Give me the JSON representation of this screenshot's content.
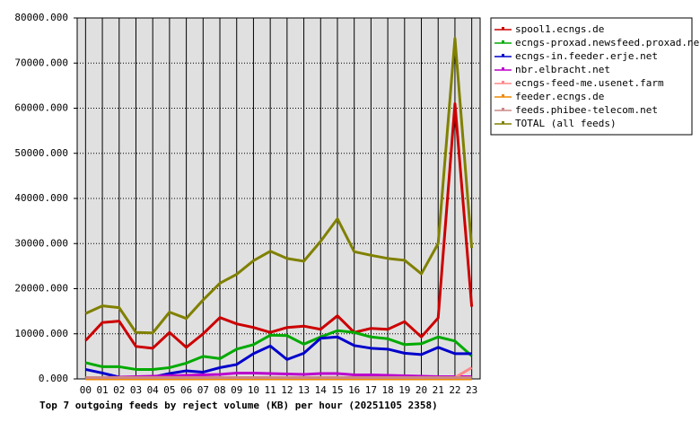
{
  "chart_data": {
    "type": "line",
    "title": "Top 7 outgoing feeds by reject volume (KB) per hour (20251105 2358)",
    "categories": [
      "00",
      "01",
      "02",
      "03",
      "04",
      "05",
      "06",
      "07",
      "08",
      "09",
      "10",
      "11",
      "12",
      "13",
      "14",
      "15",
      "16",
      "17",
      "18",
      "19",
      "20",
      "21",
      "22",
      "23"
    ],
    "ylim": [
      0,
      80000
    ],
    "yticks": [
      {
        "value": 0,
        "label": "0.000"
      },
      {
        "value": 10000,
        "label": "10000.000"
      },
      {
        "value": 20000,
        "label": "20000.000"
      },
      {
        "value": 30000,
        "label": "30000.000"
      },
      {
        "value": 40000,
        "label": "40000.000"
      },
      {
        "value": 50000,
        "label": "50000.000"
      },
      {
        "value": 60000,
        "label": "60000.000"
      },
      {
        "value": 70000,
        "label": "70000.000"
      },
      {
        "value": 80000,
        "label": "80000.000"
      }
    ],
    "grid": true,
    "series": [
      {
        "name": "spool1.ecngs.de",
        "color": "#cc0000",
        "values": [
          8500,
          12500,
          12800,
          7200,
          6800,
          10300,
          7000,
          10000,
          13600,
          12200,
          11400,
          10300,
          11400,
          11700,
          11000,
          14000,
          10300,
          11200,
          11000,
          12700,
          9300,
          13500,
          61000,
          16000
        ]
      },
      {
        "name": "ecngs-proxad.newsfeed.proxad.net",
        "color": "#00aa00",
        "values": [
          3600,
          2700,
          2700,
          2100,
          2100,
          2500,
          3500,
          5000,
          4500,
          6600,
          7600,
          9700,
          9600,
          7700,
          9300,
          10700,
          10300,
          9300,
          8900,
          7600,
          7800,
          9300,
          8400,
          5100
        ]
      },
      {
        "name": "ecngs-in.feeder.erje.net",
        "color": "#0000cc",
        "values": [
          2100,
          1300,
          400,
          300,
          400,
          1200,
          1800,
          1500,
          2500,
          3200,
          5600,
          7300,
          4300,
          5700,
          9000,
          9300,
          7400,
          6800,
          6600,
          5700,
          5400,
          7000,
          5600,
          5600
        ]
      },
      {
        "name": "nbr.elbracht.net",
        "color": "#bb00cc",
        "values": [
          300,
          300,
          400,
          500,
          600,
          700,
          800,
          900,
          1000,
          1300,
          1300,
          1200,
          1100,
          1000,
          1200,
          1200,
          900,
          900,
          800,
          700,
          600,
          500,
          500,
          500
        ]
      },
      {
        "name": "ecngs-feed-me.usenet.farm",
        "color": "#ff8888",
        "values": [
          200,
          200,
          200,
          200,
          200,
          200,
          200,
          200,
          200,
          200,
          200,
          200,
          200,
          200,
          200,
          200,
          200,
          200,
          200,
          200,
          300,
          300,
          300,
          2500
        ]
      },
      {
        "name": "feeder.ecngs.de",
        "color": "#ee8800",
        "values": [
          0,
          0,
          0,
          0,
          0,
          0,
          0,
          0,
          0,
          0,
          0,
          0,
          0,
          0,
          0,
          0,
          0,
          0,
          0,
          0,
          0,
          0,
          0,
          0
        ]
      },
      {
        "name": "feeds.phibee-telecom.net",
        "color": "#cc8888",
        "values": [
          300,
          300,
          300,
          300,
          300,
          300,
          300,
          300,
          300,
          300,
          300,
          300,
          300,
          300,
          300,
          300,
          300,
          300,
          300,
          300,
          300,
          300,
          300,
          300
        ]
      },
      {
        "name": "TOTAL (all feeds)",
        "color": "#808000",
        "values": [
          14500,
          16200,
          15800,
          10300,
          10200,
          14800,
          13400,
          17500,
          21200,
          23200,
          26200,
          28300,
          26700,
          26100,
          30500,
          35500,
          28200,
          27400,
          26700,
          26300,
          23300,
          30000,
          75500,
          29000
        ]
      }
    ]
  }
}
